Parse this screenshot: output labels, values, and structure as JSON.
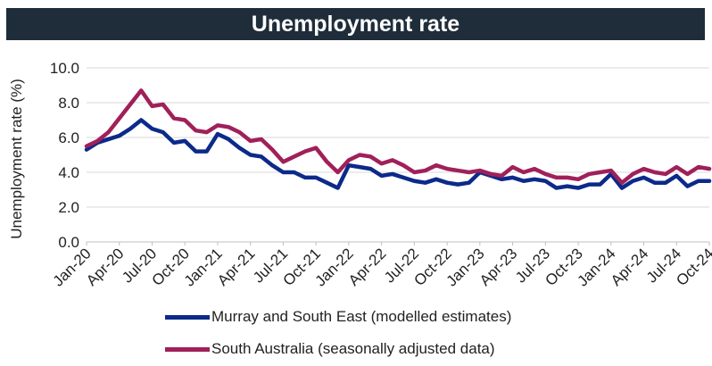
{
  "chart_data": {
    "type": "line",
    "title": "Unemployment rate",
    "ylabel": "Unemployment rate (%)",
    "xlabel": "",
    "ylim": [
      0,
      10
    ],
    "yticks": [
      "0.0",
      "2.0",
      "4.0",
      "6.0",
      "8.0",
      "10.0"
    ],
    "x": [
      "Jan-20",
      "Feb-20",
      "Mar-20",
      "Apr-20",
      "May-20",
      "Jun-20",
      "Jul-20",
      "Aug-20",
      "Sep-20",
      "Oct-20",
      "Nov-20",
      "Dec-20",
      "Jan-21",
      "Feb-21",
      "Mar-21",
      "Apr-21",
      "May-21",
      "Jun-21",
      "Jul-21",
      "Aug-21",
      "Sep-21",
      "Oct-21",
      "Nov-21",
      "Dec-21",
      "Jan-22",
      "Feb-22",
      "Mar-22",
      "Apr-22",
      "May-22",
      "Jun-22",
      "Jul-22",
      "Aug-22",
      "Sep-22",
      "Oct-22",
      "Nov-22",
      "Dec-22",
      "Jan-23",
      "Feb-23",
      "Mar-23",
      "Apr-23",
      "May-23",
      "Jun-23",
      "Jul-23",
      "Aug-23",
      "Sep-23",
      "Oct-23",
      "Nov-23",
      "Dec-23",
      "Jan-24",
      "Feb-24",
      "Mar-24",
      "Apr-24",
      "May-24",
      "Jun-24",
      "Jul-24",
      "Aug-24",
      "Sep-24",
      "Oct-24"
    ],
    "xtick_labels": [
      "Jan-20",
      "Apr-20",
      "Jul-20",
      "Oct-20",
      "Jan-21",
      "Apr-21",
      "Jul-21",
      "Oct-21",
      "Jan-22",
      "Apr-22",
      "Jul-22",
      "Oct-22",
      "Jan-23",
      "Apr-23",
      "Jul-23",
      "Oct-23",
      "Jan-24",
      "Apr-24",
      "Jul-24",
      "Oct-24"
    ],
    "series": [
      {
        "name": "Murray and South East (modelled estimates)",
        "color": "#0b2a8a",
        "values": [
          5.3,
          5.7,
          5.9,
          6.1,
          6.5,
          7.0,
          6.5,
          6.3,
          5.7,
          5.8,
          5.2,
          5.2,
          6.2,
          5.9,
          5.4,
          5.0,
          4.9,
          4.4,
          4.0,
          4.0,
          3.7,
          3.7,
          3.4,
          3.1,
          4.4,
          4.3,
          4.2,
          3.8,
          3.9,
          3.7,
          3.5,
          3.4,
          3.6,
          3.4,
          3.3,
          3.4,
          4.0,
          3.8,
          3.6,
          3.7,
          3.5,
          3.6,
          3.5,
          3.1,
          3.2,
          3.1,
          3.3,
          3.3,
          3.9,
          3.1,
          3.5,
          3.7,
          3.4,
          3.4,
          3.8,
          3.2,
          3.5,
          3.5
        ]
      },
      {
        "name": "South Australia (seasonally adjusted data)",
        "color": "#a0205a",
        "values": [
          5.5,
          5.8,
          6.3,
          7.1,
          7.9,
          8.7,
          7.8,
          7.9,
          7.1,
          7.0,
          6.4,
          6.3,
          6.7,
          6.6,
          6.3,
          5.8,
          5.9,
          5.3,
          4.6,
          4.9,
          5.2,
          5.4,
          4.6,
          4.0,
          4.7,
          5.0,
          4.9,
          4.5,
          4.7,
          4.4,
          4.0,
          4.1,
          4.4,
          4.2,
          4.1,
          4.0,
          4.1,
          3.9,
          3.8,
          4.3,
          4.0,
          4.2,
          3.9,
          3.7,
          3.7,
          3.6,
          3.9,
          4.0,
          4.1,
          3.4,
          3.9,
          4.2,
          4.0,
          3.9,
          4.3,
          3.9,
          4.3,
          4.2
        ]
      }
    ],
    "grid": "horizontal",
    "legend_position": "bottom"
  }
}
